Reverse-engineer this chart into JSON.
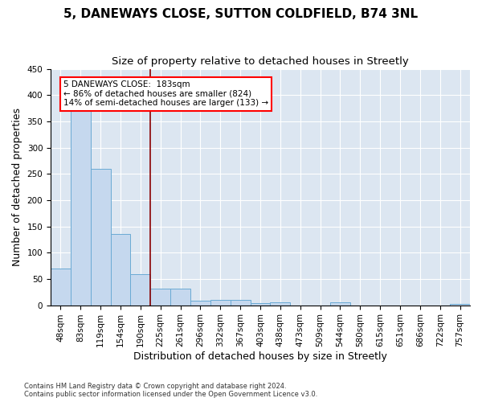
{
  "title_line1": "5, DANEWAYS CLOSE, SUTTON COLDFIELD, B74 3NL",
  "title_line2": "Size of property relative to detached houses in Streetly",
  "xlabel": "Distribution of detached houses by size in Streetly",
  "ylabel": "Number of detached properties",
  "footnote": "Contains HM Land Registry data © Crown copyright and database right 2024.\nContains public sector information licensed under the Open Government Licence v3.0.",
  "bin_labels": [
    "48sqm",
    "83sqm",
    "119sqm",
    "154sqm",
    "190sqm",
    "225sqm",
    "261sqm",
    "296sqm",
    "332sqm",
    "367sqm",
    "403sqm",
    "438sqm",
    "473sqm",
    "509sqm",
    "544sqm",
    "580sqm",
    "615sqm",
    "651sqm",
    "686sqm",
    "722sqm",
    "757sqm"
  ],
  "bar_heights": [
    70,
    375,
    260,
    136,
    59,
    31,
    31,
    8,
    10,
    10,
    4,
    5,
    0,
    0,
    5,
    0,
    0,
    0,
    0,
    0,
    3
  ],
  "bar_color": "#c5d8ee",
  "bar_edge_color": "#6aaad4",
  "vline_x": 4.5,
  "vline_color": "#8b0000",
  "annotation_text": "5 DANEWAYS CLOSE:  183sqm\n← 86% of detached houses are smaller (824)\n14% of semi-detached houses are larger (133) →",
  "annotation_box_color": "white",
  "annotation_box_edge": "red",
  "ylim": [
    0,
    450
  ],
  "yticks": [
    0,
    50,
    100,
    150,
    200,
    250,
    300,
    350,
    400,
    450
  ],
  "plot_bg_color": "#dce6f1",
  "title_fontsize": 11,
  "subtitle_fontsize": 9.5,
  "tick_fontsize": 7.5,
  "label_fontsize": 9,
  "footnote_fontsize": 6
}
